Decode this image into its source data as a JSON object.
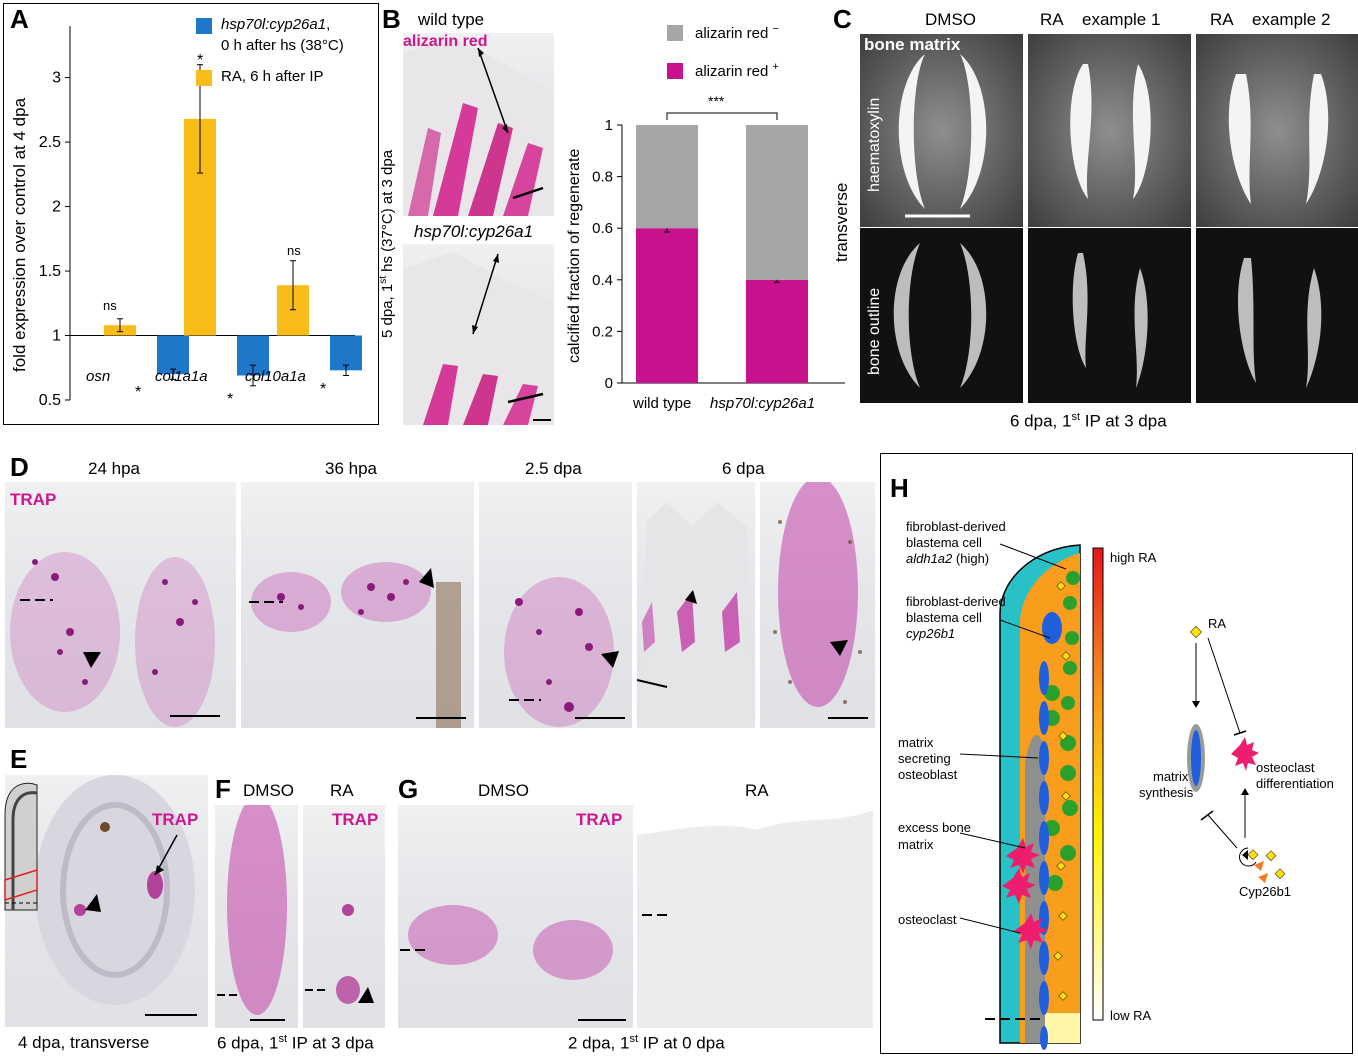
{
  "panels": {
    "A": {
      "label": "A",
      "legend": {
        "blue_gene": "hsp70l:cyp26a1",
        "blue_line1_suffix": ",",
        "blue_line2": "0 h after hs (38°C)",
        "yellow_line": "RA, 6 h after IP"
      },
      "ylabel": "fold expression over control at 4 dpa",
      "genes": [
        "osn",
        "col1a1a",
        "col10a1a"
      ],
      "annotations": [
        "ns",
        "*",
        "ns",
        "*",
        "*",
        "*"
      ]
    },
    "B": {
      "label": "B",
      "wt_title": "wild type",
      "stain": "alizarin red",
      "mutant_title": "hsp70l:cyp26a1",
      "side_label_pre": "5 dpa, 1",
      "side_label_sup": "st",
      "side_label_post": " hs (37°C) at 3 dpa",
      "legend_neg": "alizarin red",
      "legend_neg_sup": "−",
      "legend_pos": "alizarin red",
      "legend_pos_sup": "+",
      "ylabel": "calcified fraction of regenerate",
      "sig": "***"
    },
    "C": {
      "label": "C",
      "cols": [
        "DMSO",
        "RA",
        "example 1",
        "RA",
        "example 2"
      ],
      "top_label": "bone matrix",
      "row1": "haematoxylin",
      "row2": "bone outline",
      "side": "transverse",
      "caption_pre": "6 dpa, 1",
      "caption_sup": "st",
      "caption_post": " IP at 3 dpa"
    },
    "D": {
      "label": "D",
      "stain": "TRAP",
      "times": [
        "24 hpa",
        "36 hpa",
        "2.5 dpa",
        "6 dpa"
      ]
    },
    "E": {
      "label": "E",
      "stain": "TRAP",
      "caption": "4 dpa, transverse"
    },
    "F": {
      "label": "F",
      "cols": [
        "DMSO",
        "RA"
      ],
      "stain": "TRAP",
      "caption_pre": "6 dpa, 1",
      "caption_sup": "st",
      "caption_post": " IP at 3 dpa"
    },
    "G": {
      "label": "G",
      "cols": [
        "DMSO",
        "RA"
      ],
      "stain": "TRAP",
      "caption_pre": "2 dpa, 1",
      "caption_sup": "st",
      "caption_post": " IP at 0 dpa"
    },
    "H": {
      "label": "H",
      "cell1_l1": "fibroblast-derived",
      "cell1_l2": "blastema cell",
      "cell1_gene": "aldh1a2",
      "cell1_suffix": " (high)",
      "cell2_l1": "fibroblast-derived",
      "cell2_l2": "blastema cell",
      "cell2_gene": "cyp26b1",
      "osteoblast": [
        "matrix",
        "secreting",
        "osteoblast"
      ],
      "excess": [
        "excess bone",
        "matrix"
      ],
      "osteoclast": "osteoclast",
      "high_ra": "high RA",
      "low_ra": "low RA",
      "ra": "RA",
      "matrix_synthesis": [
        "matrix",
        "synthesis"
      ],
      "oc_diff": [
        "osteoclast",
        "differentiation"
      ],
      "cyp": "Cyp26b1"
    }
  },
  "chart_data": [
    {
      "type": "bar",
      "panel": "A",
      "categories": [
        "osn",
        "col1a1a",
        "col10a1a"
      ],
      "series": [
        {
          "name": "RA, 6 h after IP",
          "values": [
            1.08,
            2.68,
            1.39
          ],
          "errors": [
            0.05,
            0.42,
            0.19
          ],
          "color": "#f9bd1a"
        },
        {
          "name": "hsp70l:cyp26a1, 0 h after hs (38°C)",
          "values": [
            0.7,
            0.69,
            0.73
          ],
          "errors": [
            0.04,
            0.08,
            0.04
          ],
          "color": "#1f77c9"
        }
      ],
      "ylabel": "fold expression over control at 4 dpa",
      "ylim": [
        0.5,
        3.4
      ],
      "yticks": [
        0.5,
        1,
        1.5,
        2,
        2.5,
        3
      ],
      "baseline": 1
    },
    {
      "type": "bar",
      "stacked": true,
      "panel": "B",
      "categories": [
        "wild type",
        "hsp70l:cyp26a1"
      ],
      "series": [
        {
          "name": "alizarin red +",
          "values": [
            0.6,
            0.4
          ],
          "errors": [
            0.015,
            0.01
          ],
          "color": "#c8118c"
        },
        {
          "name": "alizarin red −",
          "values": [
            0.4,
            0.6
          ],
          "color": "#a6a6a6"
        }
      ],
      "ylabel": "calcified fraction of regenerate",
      "ylim": [
        0,
        1
      ],
      "yticks": [
        "0",
        "0.2",
        "0.4",
        "0.6",
        "0.8",
        "1"
      ]
    }
  ]
}
